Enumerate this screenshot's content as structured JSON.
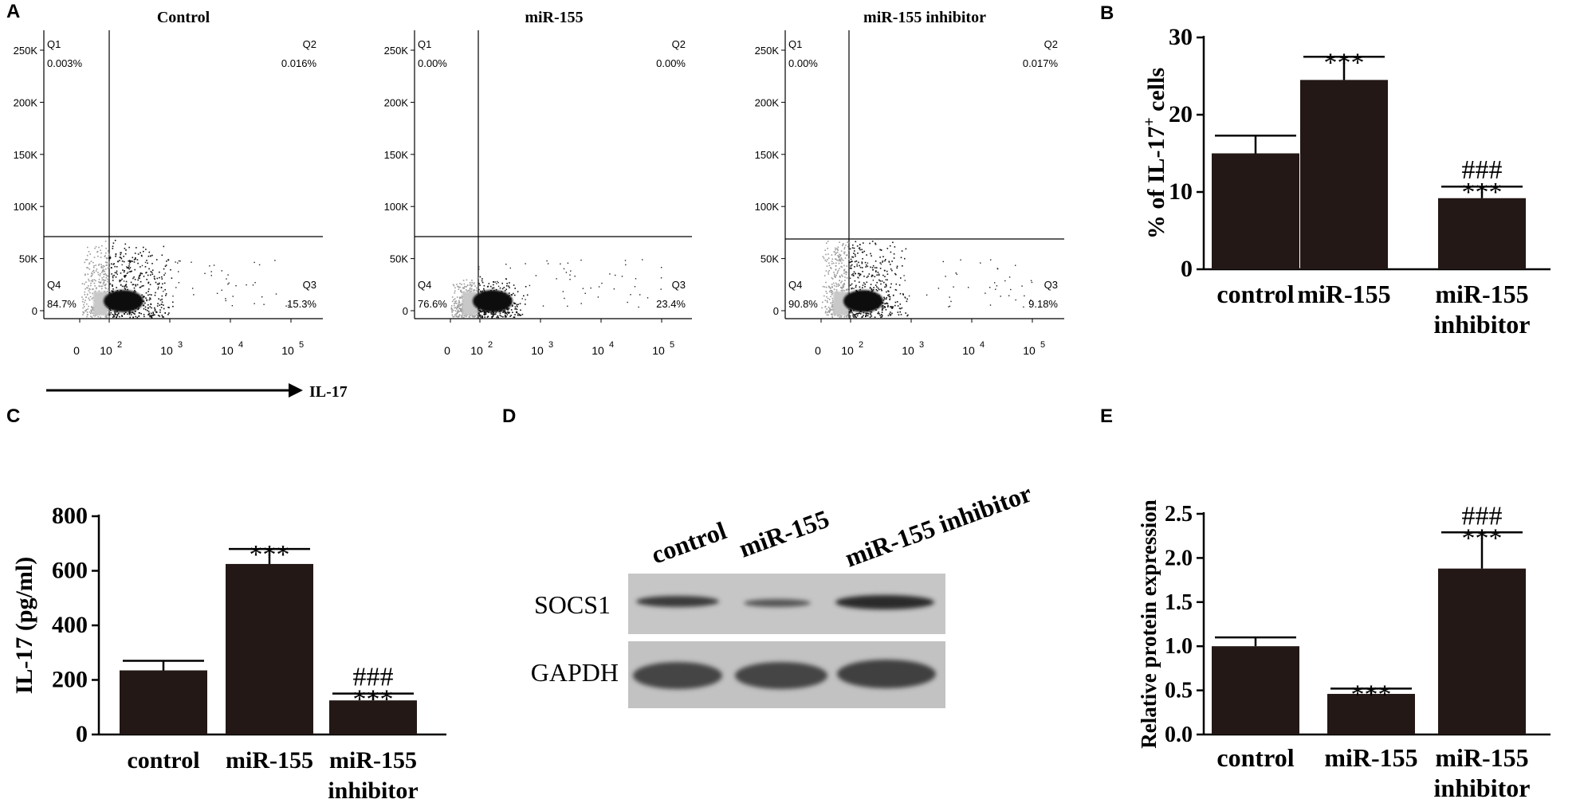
{
  "panels": {
    "A": {
      "label": "A",
      "arrow_label": "IL-17",
      "plots": [
        {
          "title": "Control",
          "quadrants": {
            "q1": [
              "Q1",
              "0.003%"
            ],
            "q2": [
              "Q2",
              "0.016%"
            ],
            "q3": [
              "Q3",
              "15.3%"
            ],
            "q4": [
              "Q4",
              "84.7%"
            ]
          }
        },
        {
          "title": "miR-155",
          "quadrants": {
            "q1": [
              "Q1",
              "0.00%"
            ],
            "q2": [
              "Q2",
              "0.00%"
            ],
            "q3": [
              "Q3",
              "23.4%"
            ],
            "q4": [
              "Q4",
              "76.6%"
            ]
          }
        },
        {
          "title": "miR-155 inhibitor",
          "quadrants": {
            "q1": [
              "Q1",
              "0.00%"
            ],
            "q2": [
              "Q2",
              "0.017%"
            ],
            "q3": [
              "Q3",
              "9.18%"
            ],
            "q4": [
              "Q4",
              "90.8%"
            ]
          }
        }
      ],
      "y_ticks": [
        "250K",
        "200K",
        "150K",
        "100K",
        "50K",
        "0"
      ],
      "x_ticks": [
        "0",
        "10",
        "10",
        "10",
        "10"
      ],
      "x_tick_exponents": [
        "",
        "2",
        "3",
        "4",
        "5"
      ]
    },
    "B": {
      "label": "B"
    },
    "C": {
      "label": "C"
    },
    "D": {
      "label": "D",
      "lanes": [
        "control",
        "miR-155",
        "miR-155 inhibitor"
      ],
      "rows": [
        "SOCS1",
        "GAPDH"
      ]
    },
    "E": {
      "label": "E"
    }
  },
  "chart_data": [
    {
      "panel": "B",
      "type": "bar",
      "categories": [
        "control",
        "miR-155",
        "miR-155 inhibitor"
      ],
      "category_lines": [
        [
          "control"
        ],
        [
          "miR-155"
        ],
        [
          "miR-155",
          "inhibitor"
        ]
      ],
      "values": [
        15.0,
        24.5,
        9.2
      ],
      "errors": [
        2.3,
        3.0,
        1.5
      ],
      "annotations": [
        [],
        [
          "***"
        ],
        [
          "###",
          "***"
        ]
      ],
      "ylabel": "% of IL-17",
      "ylabel_sup": "+",
      "ylabel_suffix": " cells",
      "ylim": [
        0,
        30
      ],
      "yticks": [
        0,
        10,
        20,
        30
      ],
      "ytick_labels": [
        "0",
        "10",
        "20",
        "30"
      ]
    },
    {
      "panel": "C",
      "type": "bar",
      "categories": [
        "control",
        "miR-155",
        "miR-155 inhibitor"
      ],
      "category_lines": [
        [
          "control"
        ],
        [
          "miR-155"
        ],
        [
          "miR-155",
          "inhibitor"
        ]
      ],
      "values": [
        235,
        625,
        125
      ],
      "errors": [
        35,
        55,
        25
      ],
      "annotations": [
        [],
        [
          "***"
        ],
        [
          "###",
          "***"
        ]
      ],
      "ylabel": "IL-17 (pg/ml)",
      "ylim": [
        0,
        800
      ],
      "yticks": [
        0,
        200,
        400,
        600,
        800
      ],
      "ytick_labels": [
        "0",
        "200",
        "400",
        "600",
        "800"
      ]
    },
    {
      "panel": "E",
      "type": "bar",
      "categories": [
        "control",
        "miR-155",
        "miR-155 inhibitor"
      ],
      "category_lines": [
        [
          "control"
        ],
        [
          "miR-155"
        ],
        [
          "miR-155",
          "inhibitor"
        ]
      ],
      "values": [
        1.0,
        0.46,
        1.88
      ],
      "errors": [
        0.1,
        0.06,
        0.41
      ],
      "annotations": [
        [],
        [
          "***"
        ],
        [
          "###",
          "***"
        ]
      ],
      "ylabel": "Relative protein expression",
      "ylim": [
        0,
        2.5
      ],
      "yticks": [
        0,
        0.5,
        1.0,
        1.5,
        2.0,
        2.5
      ],
      "ytick_labels": [
        "0.0",
        "0.5",
        "1.0",
        "1.5",
        "2.0",
        "2.5"
      ]
    }
  ],
  "colors": {
    "bar": "#231816",
    "axis": "#000000",
    "text": "#000000",
    "blot_bg": "#c8c8c8",
    "band": "#3a3a3a"
  }
}
